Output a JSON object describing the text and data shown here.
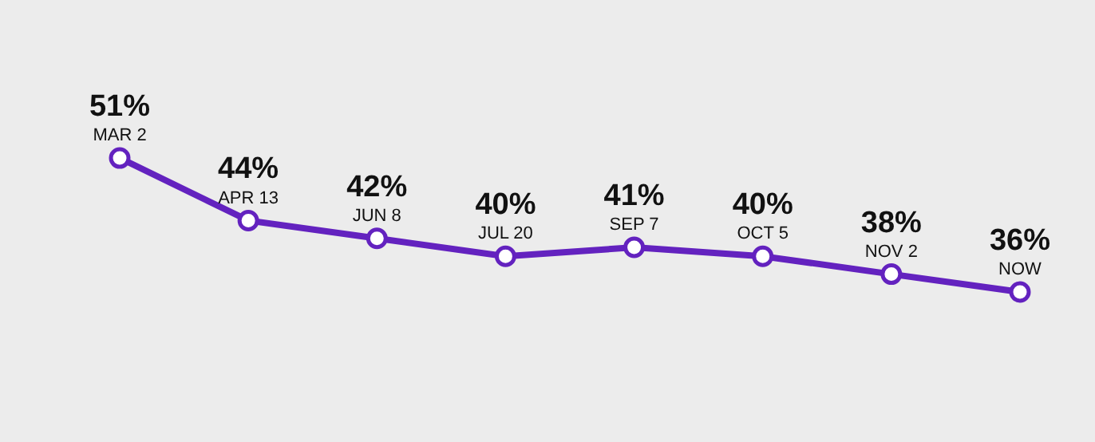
{
  "chart_data": {
    "type": "line",
    "categories": [
      "MAR 2",
      "APR 13",
      "JUN 8",
      "JUL 20",
      "SEP 7",
      "OCT 5",
      "NOV 2",
      "NOW"
    ],
    "series": [
      {
        "color": "#6322bf",
        "values": [
          51,
          44,
          42,
          40,
          41,
          40,
          38,
          36
        ],
        "value_labels": [
          "51%",
          "44%",
          "42%",
          "40%",
          "41%",
          "40%",
          "38%",
          "36%"
        ]
      }
    ],
    "ylim": [
      19.2,
      68.7
    ],
    "marker": "circle",
    "line_style": "solid"
  }
}
